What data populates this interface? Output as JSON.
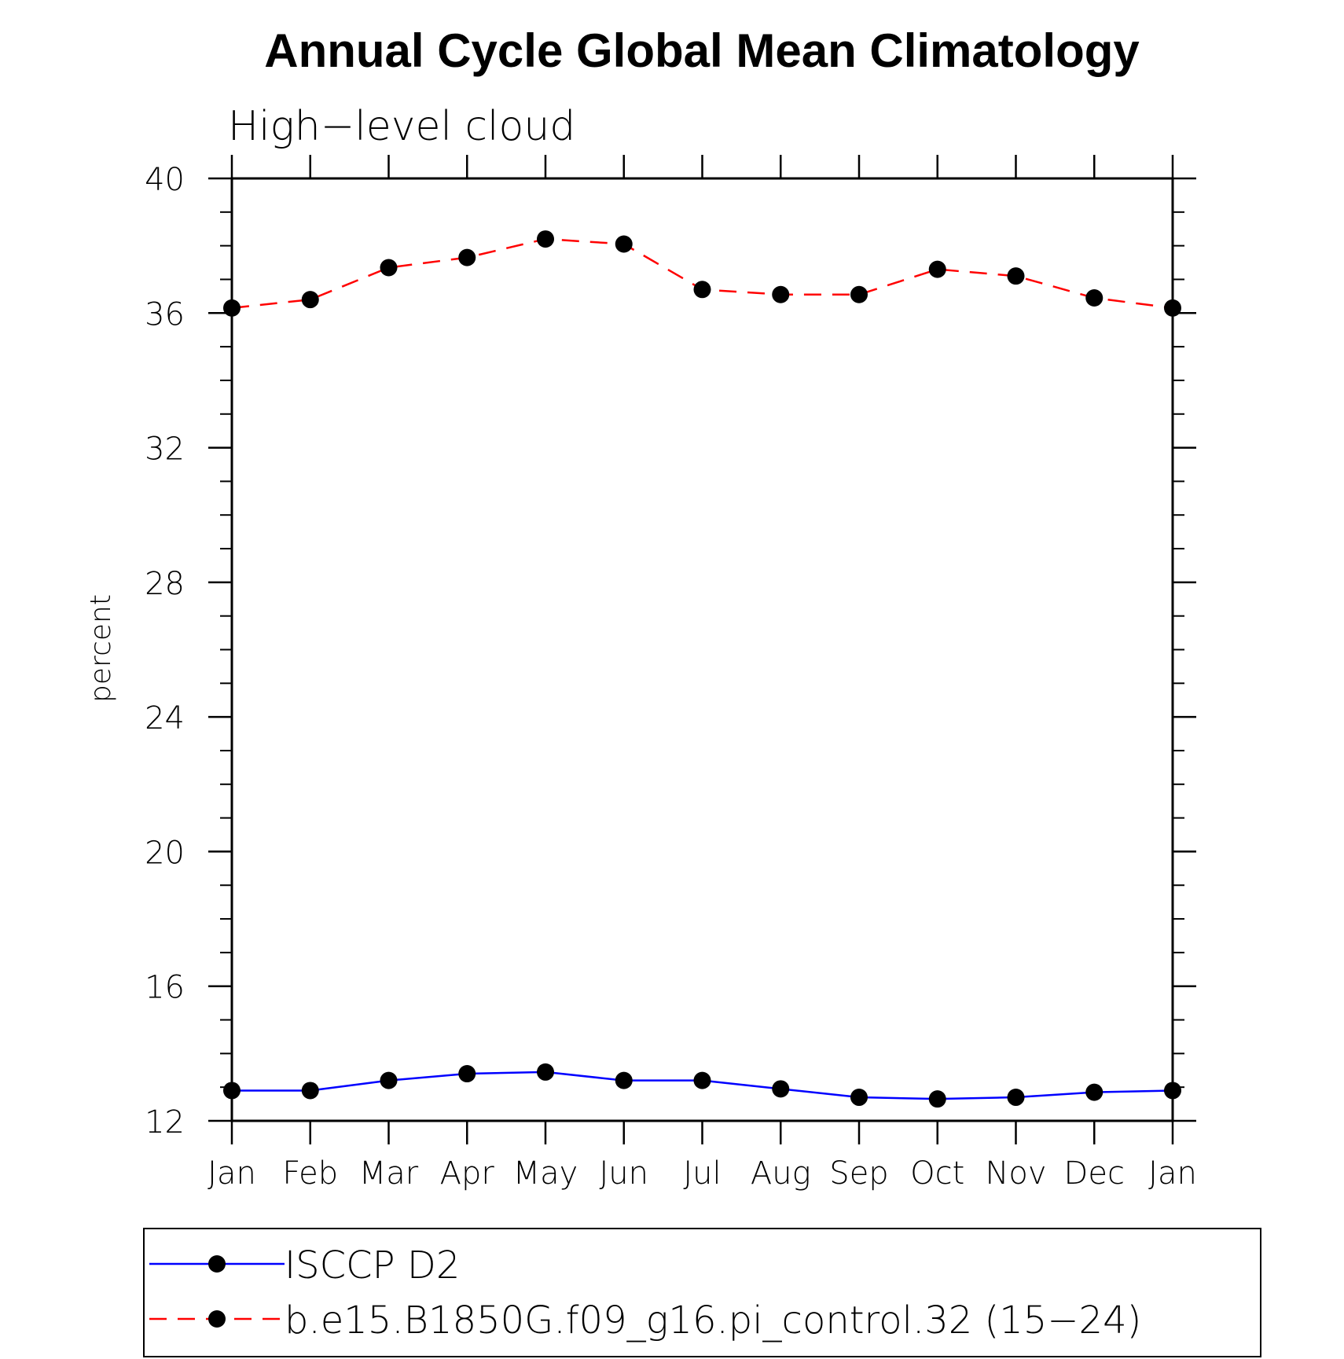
{
  "chart_data": {
    "type": "line",
    "title": "Annual Cycle Global Mean Climatology",
    "subtitle": "High−level cloud",
    "ylabel": "percent",
    "xlabel": "",
    "categories": [
      "Jan",
      "Feb",
      "Mar",
      "Apr",
      "May",
      "Jun",
      "Jul",
      "Aug",
      "Sep",
      "Oct",
      "Nov",
      "Dec",
      "Jan"
    ],
    "ylim": [
      12,
      40
    ],
    "yticks": [
      "12",
      "16",
      "20",
      "24",
      "28",
      "32",
      "36",
      "40"
    ],
    "grid": false,
    "legend_position": "bottom",
    "series": [
      {
        "name": "ISCCP D2",
        "color": "#0000ff",
        "line_style": "solid",
        "marker": "filled-circle",
        "values": [
          12.9,
          12.9,
          13.2,
          13.4,
          13.45,
          13.2,
          13.2,
          12.95,
          12.7,
          12.65,
          12.7,
          12.85,
          12.9
        ]
      },
      {
        "name": "b.e15.B1850G.f09_g16.pi_control.32 (15−24)",
        "color": "#ff0000",
        "line_style": "dashed",
        "marker": "filled-circle",
        "values": [
          36.15,
          36.4,
          37.35,
          37.65,
          38.2,
          38.05,
          36.7,
          36.55,
          36.55,
          37.3,
          37.1,
          36.45,
          36.15
        ]
      }
    ]
  }
}
